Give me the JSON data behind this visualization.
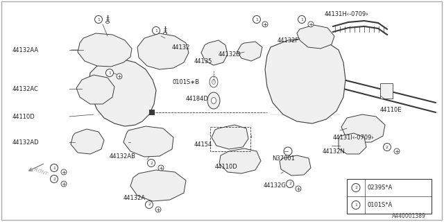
{
  "bg_color": "#ffffff",
  "border_color": "#000000",
  "lc": "#3a3a3a",
  "diagram_id": "A440001389",
  "legend_label1": "0101S*A",
  "legend_label2": "0239S*A",
  "figsize": [
    6.4,
    3.2
  ],
  "dpi": 100
}
